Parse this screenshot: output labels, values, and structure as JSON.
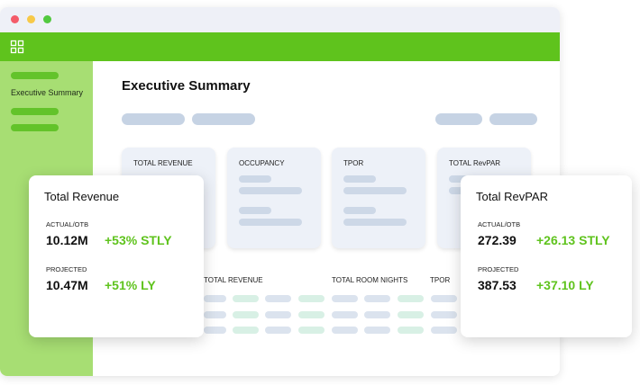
{
  "colors": {
    "brand_green": "#5fc31d",
    "sidebar_green": "#a7de73",
    "delta_green": "#5fc31d"
  },
  "sidebar": {
    "active_item": "Executive Summary"
  },
  "main": {
    "title": "Executive Summary",
    "kpi_cards": [
      {
        "title": "TOTAL REVENUE"
      },
      {
        "title": "OCCUPANCY"
      },
      {
        "title": "TPOR"
      },
      {
        "title": "TOTAL RevPAR"
      }
    ],
    "table_headers": [
      "TOTAL REVENUE",
      "TOTAL ROOM NIGHTS",
      "TPOR"
    ]
  },
  "revenue_card": {
    "title": "Total Revenue",
    "actual_label": "ACTUAL/OTB",
    "actual_value": "10.12M",
    "actual_delta": "+53% STLY",
    "projected_label": "PROJECTED",
    "projected_value": "10.47M",
    "projected_delta": "+51% LY"
  },
  "revpar_card": {
    "title": "Total RevPAR",
    "actual_label": "ACTUAL/OTB",
    "actual_value": "272.39",
    "actual_delta": "+26.13 STLY",
    "projected_label": "PROJECTED",
    "projected_value": "387.53",
    "projected_delta": "+37.10 LY"
  }
}
